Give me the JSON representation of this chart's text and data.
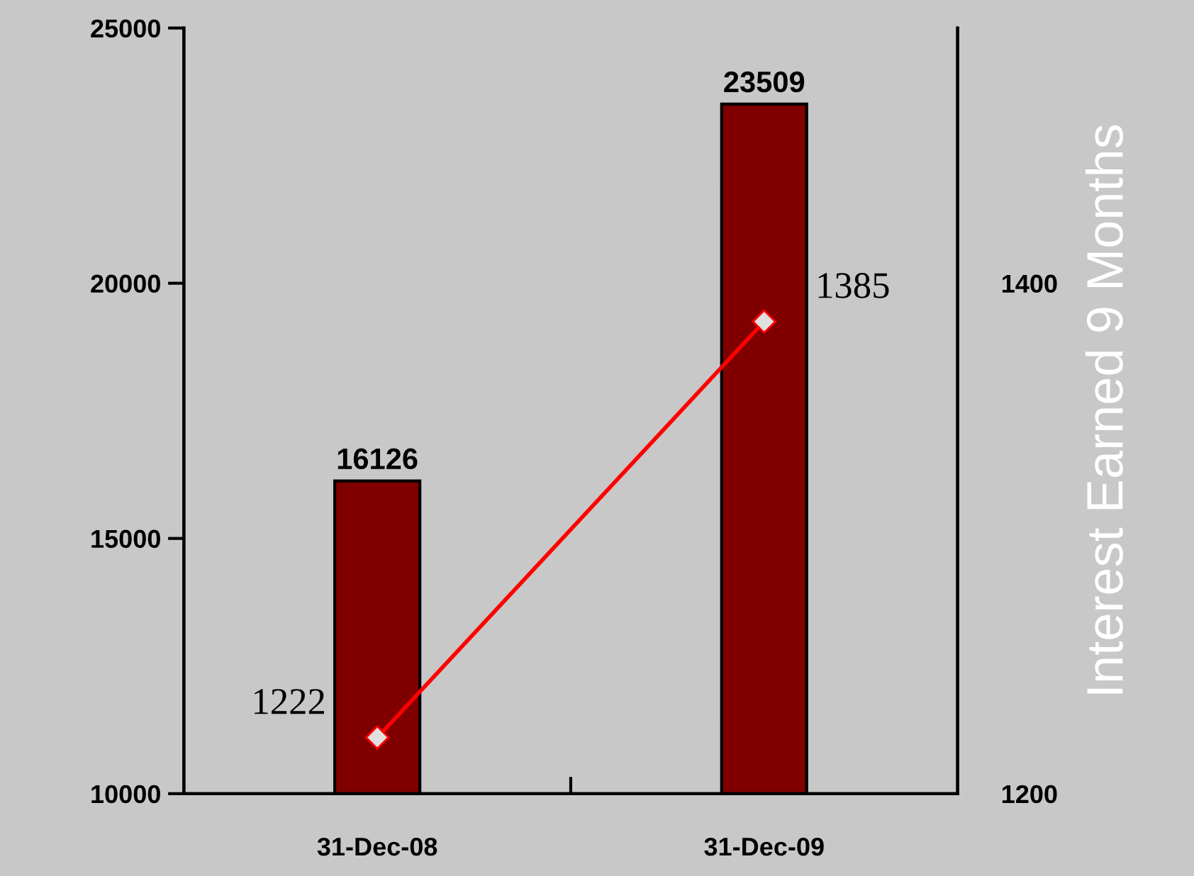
{
  "chart_data": {
    "type": "bar",
    "categories": [
      "31-Dec-08",
      "31-Dec-09"
    ],
    "y2label": "Interest Earned 9 Months",
    "ylim": [
      10000,
      25000
    ],
    "yticks": [
      10000,
      15000,
      20000,
      25000
    ],
    "y2lim": [
      1200,
      1500
    ],
    "y2ticks": [
      1200,
      1400
    ],
    "data_labels": true,
    "grid": false,
    "legend": false,
    "series": [
      {
        "color": "#800000",
        "values": [
          16126,
          23509
        ]
      },
      {
        "type": "line",
        "axis": "y2",
        "color": "#ff0000",
        "marker": "diamond",
        "line_style": "solid",
        "values": [
          1222,
          1385
        ]
      }
    ]
  }
}
